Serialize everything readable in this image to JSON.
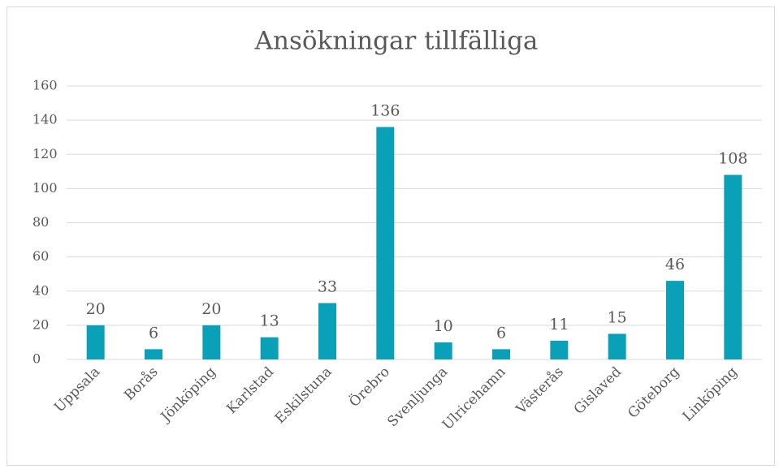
{
  "chart_data": {
    "type": "bar",
    "title": "Ansökningar tillfälliga",
    "categories": [
      "Uppsala",
      "Borås",
      "Jönköping",
      "Karlstad",
      "Eskilstuna",
      "Örebro",
      "Svenljunga",
      "Ulricehamn",
      "Västerås",
      "Gislaved",
      "Göteborg",
      "Linköping"
    ],
    "values": [
      20,
      6,
      20,
      13,
      33,
      136,
      10,
      6,
      11,
      15,
      46,
      108
    ],
    "color": "#0aa1b8",
    "ylim": [
      0,
      160
    ],
    "yticks": [
      0,
      20,
      40,
      60,
      80,
      100,
      120,
      140,
      160
    ],
    "grid": true
  }
}
